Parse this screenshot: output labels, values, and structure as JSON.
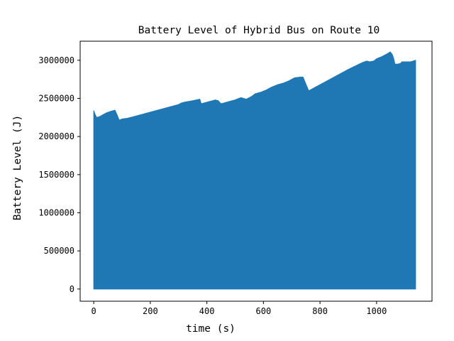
{
  "chart_data": {
    "type": "area",
    "title": "Battery Level of Hybrid Bus on Route 10",
    "xlabel": "time (s)",
    "ylabel": "Battery Level (J)",
    "xlim": [
      -48,
      1196
    ],
    "ylim": [
      -160000,
      3250000
    ],
    "x_ticks": [
      0,
      200,
      400,
      600,
      800,
      1000
    ],
    "y_ticks": [
      0,
      500000,
      1000000,
      1500000,
      2000000,
      2500000,
      3000000
    ],
    "grid": false,
    "legend": "none",
    "fill_color": "#1f77b4",
    "series": [
      {
        "x": [
          0,
          5,
          10,
          20,
          30,
          45,
          60,
          75,
          82,
          90,
          100,
          120,
          150,
          200,
          250,
          300,
          310,
          320,
          350,
          375,
          380,
          400,
          420,
          430,
          440,
          450,
          460,
          480,
          500,
          520,
          540,
          560,
          570,
          590,
          610,
          630,
          650,
          670,
          690,
          710,
          730,
          740,
          760,
          800,
          850,
          900,
          950,
          965,
          975,
          990,
          1000,
          1020,
          1040,
          1048,
          1055,
          1060,
          1065,
          1075,
          1085,
          1090,
          1100,
          1120,
          1130,
          1138
        ],
        "y": [
          2340000,
          2290000,
          2250000,
          2260000,
          2280000,
          2310000,
          2330000,
          2345000,
          2290000,
          2215000,
          2230000,
          2240000,
          2270000,
          2320000,
          2370000,
          2420000,
          2440000,
          2450000,
          2470000,
          2490000,
          2430000,
          2450000,
          2470000,
          2480000,
          2470000,
          2430000,
          2440000,
          2460000,
          2480000,
          2510000,
          2490000,
          2530000,
          2560000,
          2580000,
          2610000,
          2650000,
          2680000,
          2700000,
          2730000,
          2770000,
          2780000,
          2780000,
          2600000,
          2680000,
          2780000,
          2880000,
          2970000,
          2990000,
          2980000,
          2990000,
          3020000,
          3050000,
          3090000,
          3110000,
          3080000,
          3030000,
          2950000,
          2950000,
          2960000,
          2980000,
          2980000,
          2980000,
          2990000,
          3000000
        ]
      }
    ]
  }
}
